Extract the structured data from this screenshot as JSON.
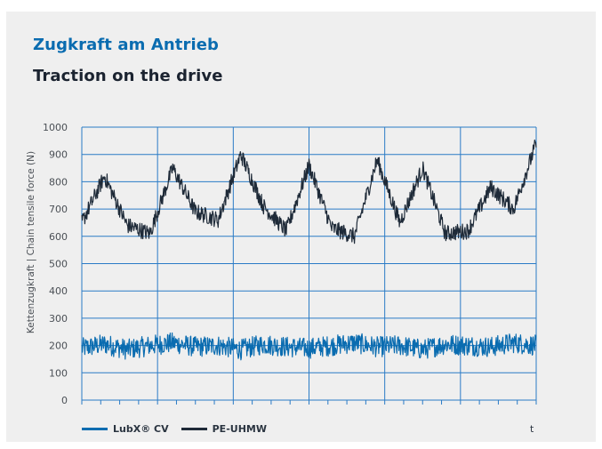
{
  "title_de": "Zugkraft am Antrieb",
  "title_en": "Traction on the drive",
  "colors": {
    "card_bg": "#efefef",
    "grid": "#2a7bc6",
    "lubx": "#0a6cb0",
    "pe": "#1e2a38",
    "axis_text": "#4a4f55"
  },
  "chart_data": {
    "type": "line",
    "title": "Zugkraft am Antrieb",
    "subtitle": "Traction on the drive",
    "xlabel": "t",
    "ylabel": "Kettenzugkraft | Chain tensile force (N)",
    "ylim": [
      0,
      1000
    ],
    "yticks": [
      "0",
      "100",
      "200",
      "300",
      "400",
      "500",
      "600",
      "700",
      "800",
      "900",
      "1000"
    ],
    "grid": true,
    "legend_position": "bottom-left",
    "x": [
      0,
      5,
      10,
      15,
      20,
      25,
      30,
      35,
      40,
      45,
      50,
      55,
      60,
      65,
      70,
      75,
      80,
      85,
      90,
      95,
      100
    ],
    "series": [
      {
        "name": "LubX® CV",
        "color": "#0a6cb0",
        "noise_amplitude": 38,
        "values": [
          190,
          205,
          185,
          200,
          210,
          195,
          200,
          185,
          205,
          195,
          190,
          200,
          210,
          195,
          200,
          185,
          205,
          200,
          195,
          210,
          200
        ]
      },
      {
        "name": "PE-UHMW",
        "color": "#1e2a38",
        "noise_amplitude": 30,
        "values": [
          650,
          820,
          640,
          610,
          850,
          690,
          660,
          900,
          710,
          620,
          860,
          630,
          600,
          880,
          650,
          850,
          610,
          620,
          780,
          700,
          940
        ]
      }
    ],
    "legend": [
      "LubX® CV",
      "PE-UHMW"
    ]
  }
}
